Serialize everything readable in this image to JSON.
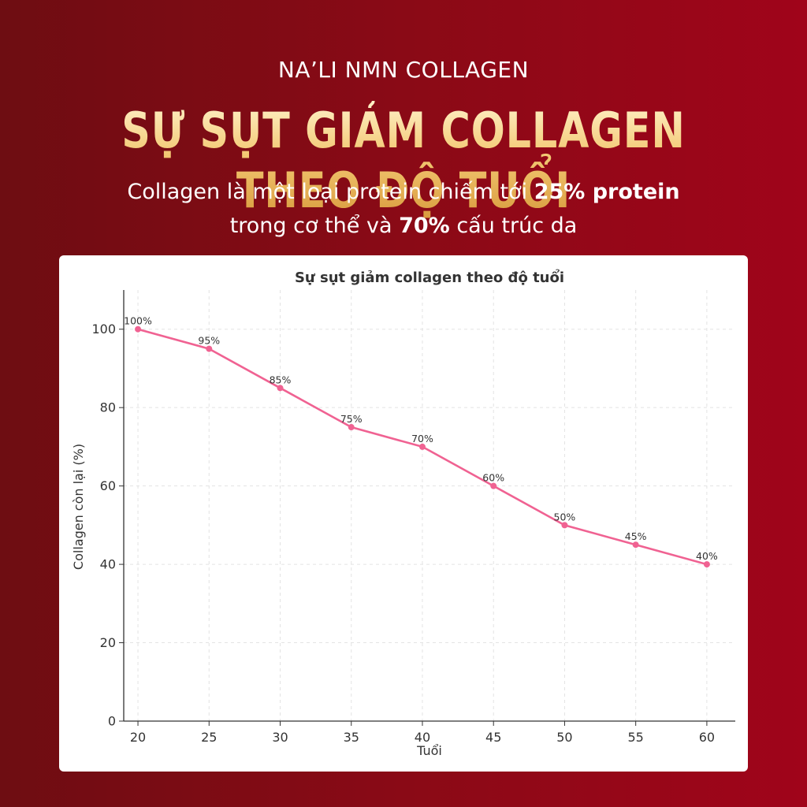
{
  "header": {
    "brand": "NA’LI NMN COLLAGEN",
    "headline": "SỰ SỤT GIẢM COLLAGEN THEO ĐỘ TUỔI",
    "subtitle_line1_pre": "Collagen là một loại protein chiếm tới ",
    "subtitle_line1_bold": "25% protein",
    "subtitle_line2_pre": "trong cơ thể và ",
    "subtitle_line2_bold": "70%",
    "subtitle_line2_post": " cấu trúc da"
  },
  "colors": {
    "background_left": "#6e0d12",
    "background_right": "#a0041a",
    "headline_gold": "#f3c873",
    "line": "#f06292"
  },
  "chart_data": {
    "type": "line",
    "title": "Sự sụt giảm collagen theo độ tuổi",
    "xlabel": "Tuổi",
    "ylabel": "Collagen còn lại (%)",
    "x": [
      20,
      25,
      30,
      35,
      40,
      45,
      50,
      55,
      60
    ],
    "series": [
      {
        "values": [
          100,
          95,
          85,
          75,
          70,
          60,
          50,
          45,
          40
        ],
        "labels": [
          "100%",
          "95%",
          "85%",
          "75%",
          "70%",
          "60%",
          "50%",
          "45%",
          "40%"
        ]
      }
    ],
    "xticks": [
      "20",
      "25",
      "30",
      "35",
      "40",
      "45",
      "50",
      "55",
      "60"
    ],
    "yticks": [
      "0",
      "20",
      "40",
      "60",
      "80",
      "100"
    ],
    "xlim": [
      19,
      62
    ],
    "ylim": [
      0,
      110
    ],
    "grid": true
  }
}
